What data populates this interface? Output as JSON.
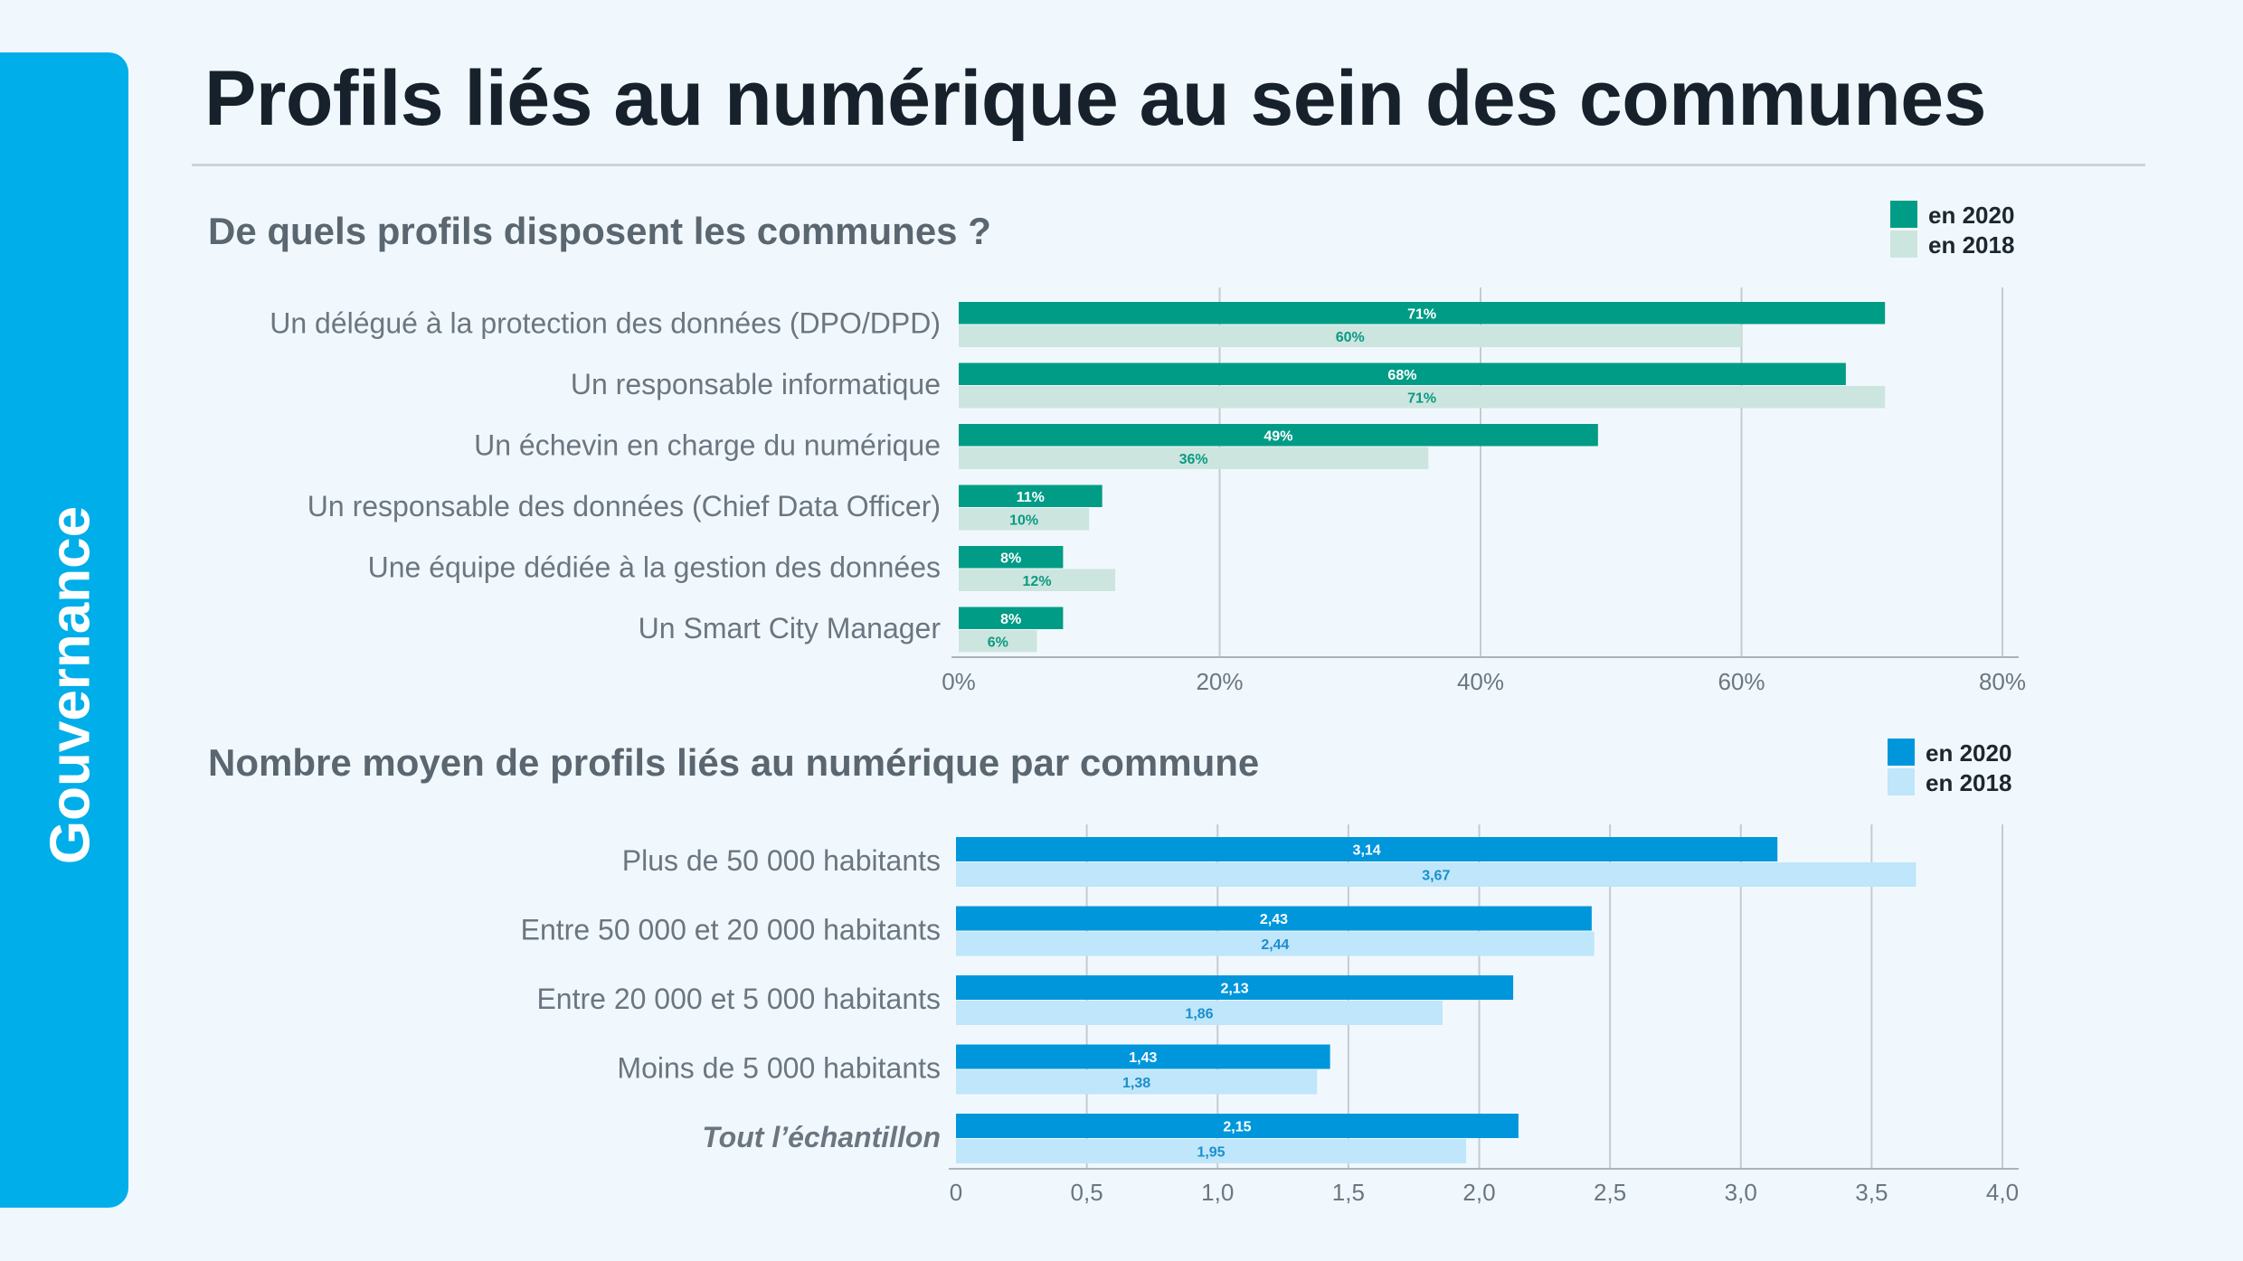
{
  "sidebar": {
    "label": "Gouvernance"
  },
  "page_title": "Profils liés au numérique au sein des communes",
  "chart_data": [
    {
      "type": "bar",
      "orientation": "horizontal",
      "title": "De quels profils disposent les communes ?",
      "categories": [
        "Un délégué à la protection des données (DPO/DPD)",
        "Un responsable informatique",
        "Un échevin en charge du numérique",
        "Un responsable des données (Chief Data Officer)",
        "Une équipe dédiée à la gestion des données",
        "Un Smart City Manager"
      ],
      "series": [
        {
          "name": "en 2020",
          "color": "#009c86",
          "label_color": "#ffffff",
          "values": [
            71,
            68,
            49,
            11,
            8,
            8
          ],
          "labels": [
            "71%",
            "68%",
            "49%",
            "11%",
            "8%",
            "8%"
          ]
        },
        {
          "name": "en 2018",
          "color": "#cde5df",
          "label_color": "#0a9a82",
          "values": [
            60,
            71,
            36,
            10,
            12,
            6
          ],
          "labels": [
            "60%",
            "71%",
            "36%",
            "10%",
            "12%",
            "6%"
          ]
        }
      ],
      "xlim": [
        0,
        80
      ],
      "xticks": [
        0,
        20,
        40,
        60,
        80
      ],
      "xtick_labels": [
        "0%",
        "20%",
        "40%",
        "60%",
        "80%"
      ],
      "grid": true,
      "legend": "top-right"
    },
    {
      "type": "bar",
      "orientation": "horizontal",
      "title": "Nombre moyen de profils liés au numérique par commune",
      "categories": [
        "Plus de 50 000 habitants",
        "Entre 50 000 et 20 000 habitants",
        "Entre 20 000 et 5 000 habitants",
        "Moins de 5 000 habitants",
        "Tout l’échantillon"
      ],
      "italic_categories": [
        "Tout l’échantillon"
      ],
      "series": [
        {
          "name": "en 2020",
          "color": "#0096dc",
          "label_color": "#ffffff",
          "values": [
            3.14,
            2.43,
            2.13,
            1.43,
            2.15
          ],
          "labels": [
            "3,14",
            "2,43",
            "2,13",
            "1,43",
            "2,15"
          ]
        },
        {
          "name": "en 2018",
          "color": "#bfe6fa",
          "label_color": "#1a8fcc",
          "values": [
            3.67,
            2.44,
            1.86,
            1.38,
            1.95
          ],
          "labels": [
            "3,67",
            "2,44",
            "1,86",
            "1,38",
            "1,95"
          ]
        }
      ],
      "xlim": [
        0,
        4
      ],
      "xticks": [
        0,
        0.5,
        1,
        1.5,
        2,
        2.5,
        3,
        3.5,
        4
      ],
      "xtick_labels": [
        "0",
        "0,5",
        "1,0",
        "1,5",
        "2,0",
        "2,5",
        "3,0",
        "3,5",
        "4,0"
      ],
      "grid": true,
      "legend": "top-right"
    }
  ]
}
